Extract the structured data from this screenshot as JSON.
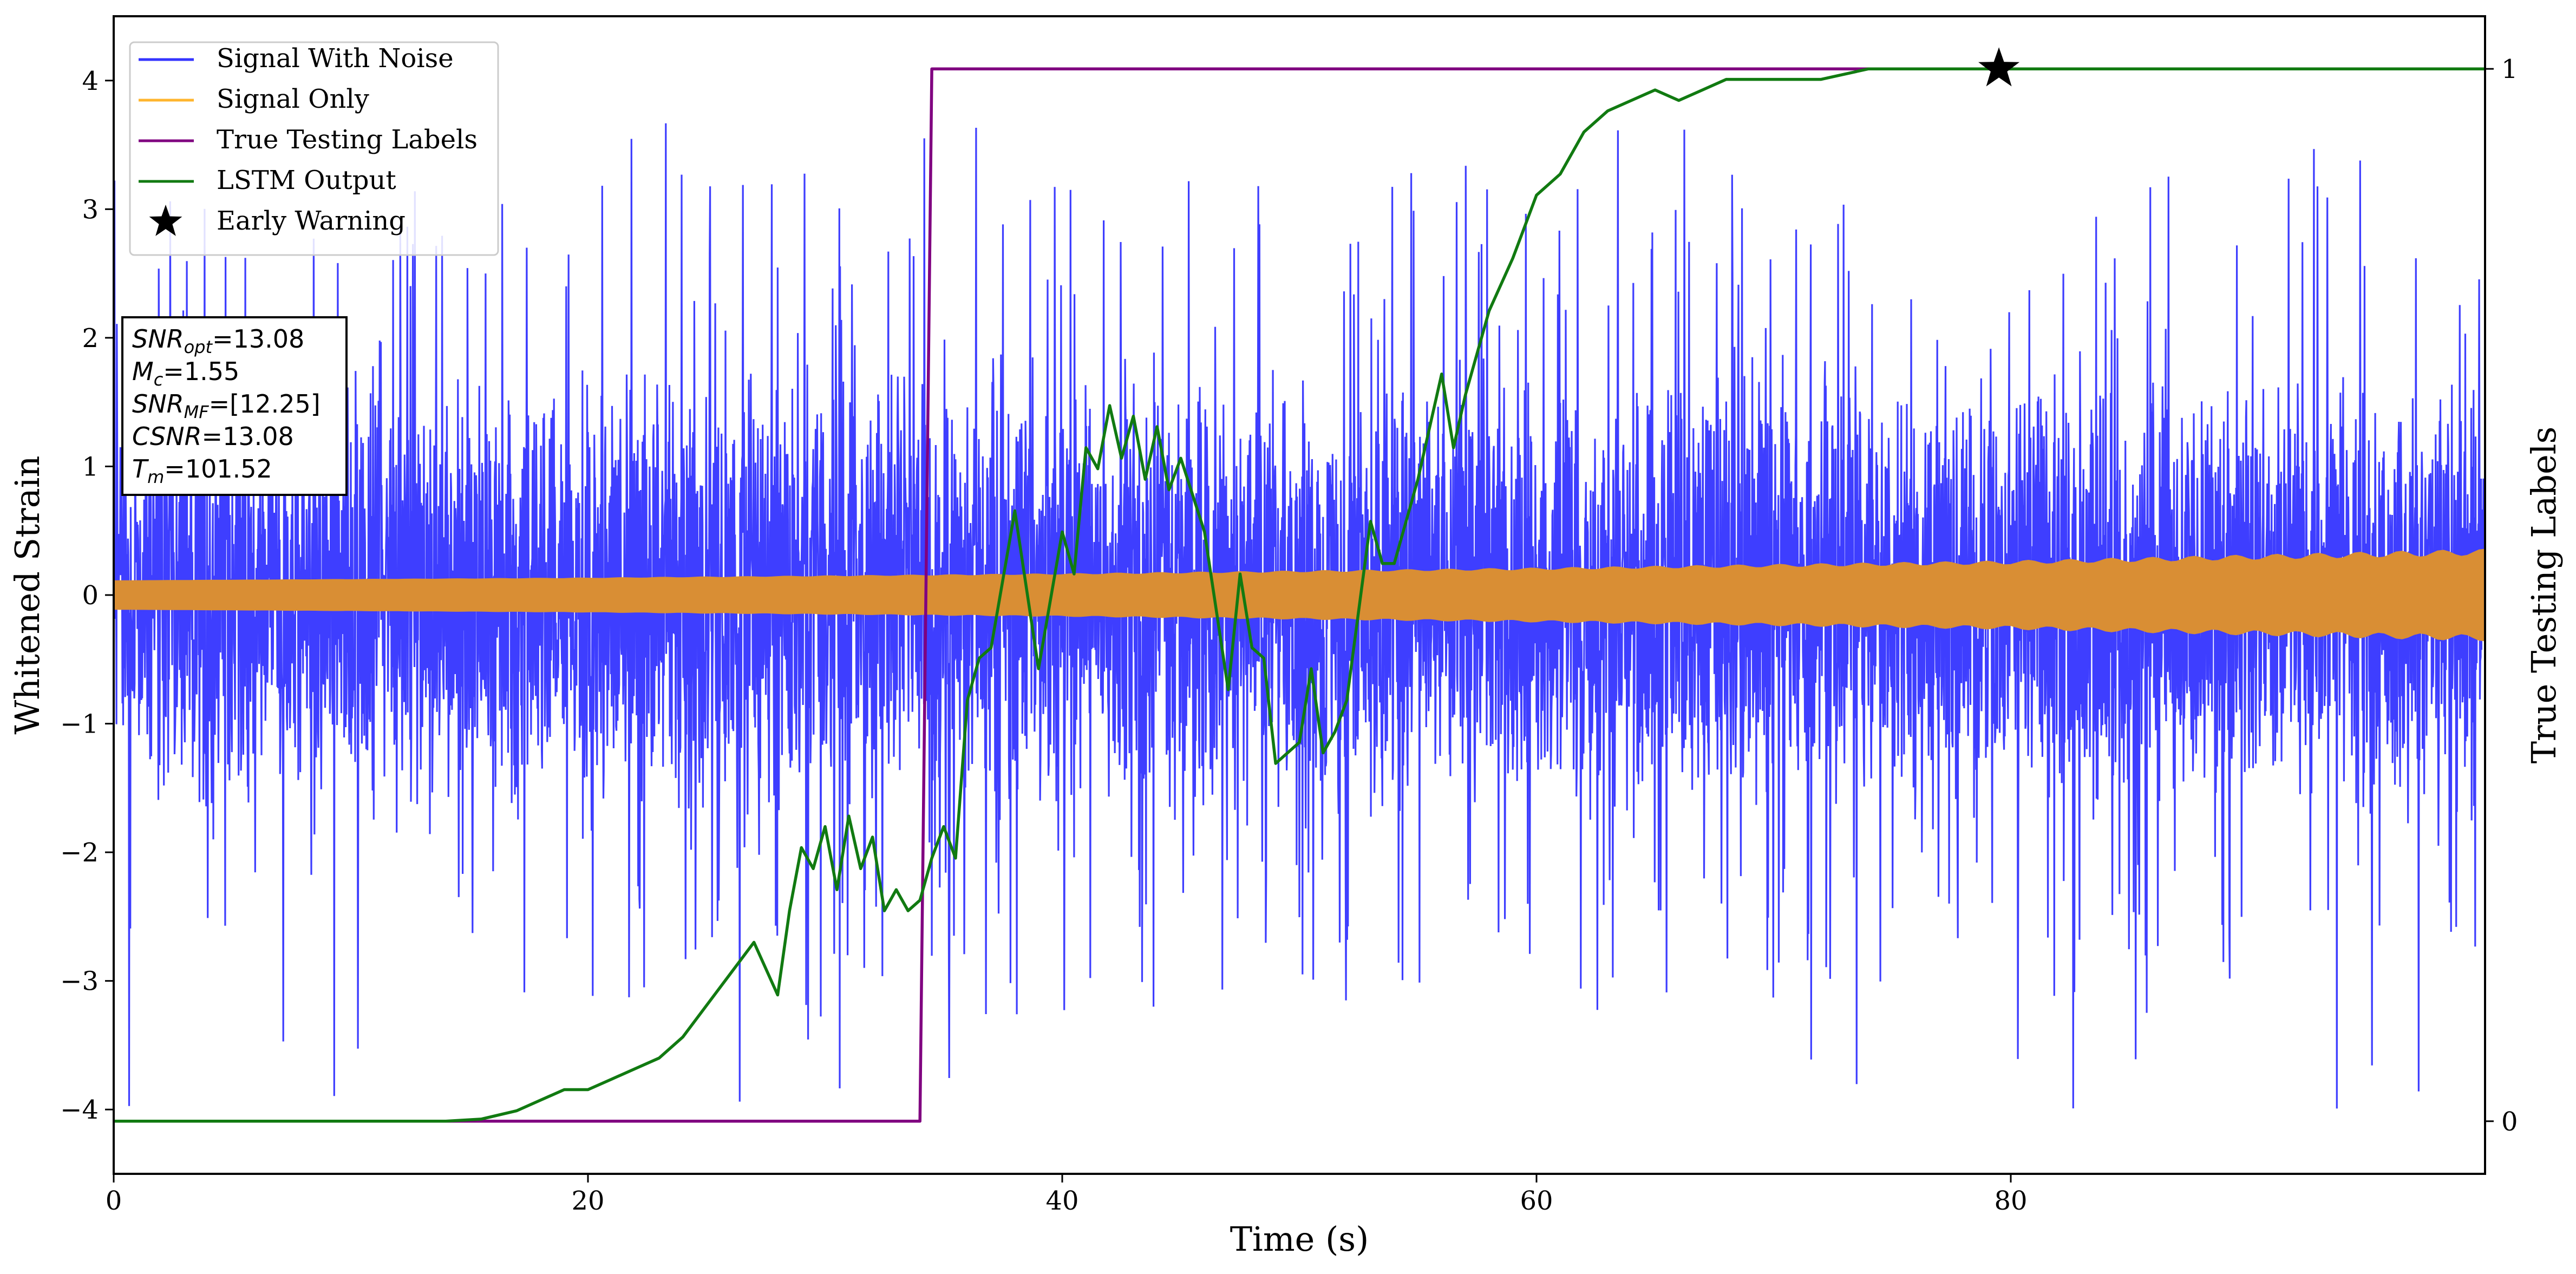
{
  "chart_data": {
    "type": "line",
    "xlabel": "Time (s)",
    "ylabel": "Whitened Strain",
    "y2label": "True Testing Labels",
    "xlim": [
      0,
      100
    ],
    "ylim": [
      -4.5,
      4.5
    ],
    "y2lim": [
      -0.05,
      1.05
    ],
    "xticks": [
      0,
      20,
      40,
      60,
      80
    ],
    "yticks": [
      -4,
      -3,
      -2,
      -1,
      0,
      1,
      2,
      3,
      4
    ],
    "y2ticks": [
      0,
      1
    ],
    "legend_placement": "top-left",
    "grid": false,
    "legend": [
      {
        "label": "Signal With Noise",
        "marker": "line",
        "color": "#3434ff"
      },
      {
        "label": "Signal Only",
        "marker": "line",
        "color": "#ffb52e"
      },
      {
        "label": "True Testing Labels",
        "marker": "line",
        "color": "#800080"
      },
      {
        "label": "LSTM Output",
        "marker": "line",
        "color": "#117a11"
      },
      {
        "label": "Early Warning",
        "marker": "star",
        "color": "#000000"
      }
    ],
    "annotation": {
      "lines": [
        {
          "sym": "SNR",
          "sub": "opt",
          "value": "=13.08"
        },
        {
          "sym": "M",
          "sub": "c",
          "value": "=1.55"
        },
        {
          "sym": "SNR",
          "sub": "MF",
          "value": "=[12.25]"
        },
        {
          "sym": "CSNR",
          "sub": "",
          "value": "=13.08"
        },
        {
          "sym": "T",
          "sub": "m",
          "value": "=101.52"
        }
      ]
    },
    "series": [
      {
        "name": "Signal With Noise",
        "axis": "left",
        "color": "#3434ff",
        "style": "noise",
        "typical_range": [
          -1.6,
          1.6
        ],
        "peak_range": [
          -4.05,
          3.7
        ]
      },
      {
        "name": "Signal Only",
        "axis": "left",
        "color": "#d98e34",
        "style": "band",
        "envelope_x": [
          0,
          20,
          40,
          60,
          80,
          100
        ],
        "envelope_amplitude": [
          0.11,
          0.13,
          0.16,
          0.2,
          0.25,
          0.33
        ]
      },
      {
        "name": "True Testing Labels",
        "axis": "right",
        "color": "#800080",
        "x": [
          0,
          34,
          34.5,
          100
        ],
        "y": [
          0,
          0,
          1,
          1
        ]
      },
      {
        "name": "LSTM Output",
        "axis": "right",
        "color": "#117a11",
        "x": [
          0,
          14,
          15.5,
          17,
          18,
          19,
          20,
          21,
          22,
          23,
          24,
          25,
          26,
          27,
          28,
          28.5,
          29,
          29.5,
          30,
          30.5,
          31,
          31.5,
          32,
          32.5,
          33,
          33.5,
          34,
          34.5,
          35,
          35.5,
          36,
          36.5,
          37,
          38,
          39,
          40,
          40.5,
          41,
          41.5,
          42,
          42.5,
          43,
          43.5,
          44,
          44.5,
          45,
          46,
          47,
          47.5,
          48,
          48.5,
          49,
          50,
          50.5,
          51,
          51.5,
          52,
          53,
          53.5,
          54,
          55,
          56,
          56.5,
          57,
          58,
          59,
          60,
          61,
          61.5,
          62,
          63,
          64,
          65,
          66,
          67,
          68,
          70,
          72,
          74,
          76,
          78,
          79.5,
          82,
          85,
          90,
          95,
          100
        ],
        "y": [
          0,
          0,
          0.002,
          0.01,
          0.02,
          0.03,
          0.03,
          0.04,
          0.05,
          0.06,
          0.08,
          0.11,
          0.14,
          0.17,
          0.12,
          0.2,
          0.26,
          0.24,
          0.28,
          0.22,
          0.29,
          0.24,
          0.27,
          0.2,
          0.22,
          0.2,
          0.21,
          0.25,
          0.28,
          0.25,
          0.4,
          0.44,
          0.45,
          0.58,
          0.43,
          0.56,
          0.52,
          0.64,
          0.62,
          0.68,
          0.63,
          0.67,
          0.61,
          0.66,
          0.6,
          0.63,
          0.56,
          0.41,
          0.52,
          0.45,
          0.44,
          0.34,
          0.36,
          0.43,
          0.35,
          0.37,
          0.4,
          0.57,
          0.53,
          0.53,
          0.61,
          0.71,
          0.64,
          0.69,
          0.77,
          0.82,
          0.88,
          0.9,
          0.92,
          0.94,
          0.96,
          0.97,
          0.98,
          0.97,
          0.98,
          0.99,
          0.99,
          0.99,
          1.0,
          1.0,
          1.0,
          1.0,
          1.0,
          1.0,
          1.0,
          1.0,
          1.0
        ]
      }
    ],
    "early_warning": {
      "x": 79.5,
      "y": 1.0,
      "axis": "right",
      "marker": "star"
    }
  }
}
